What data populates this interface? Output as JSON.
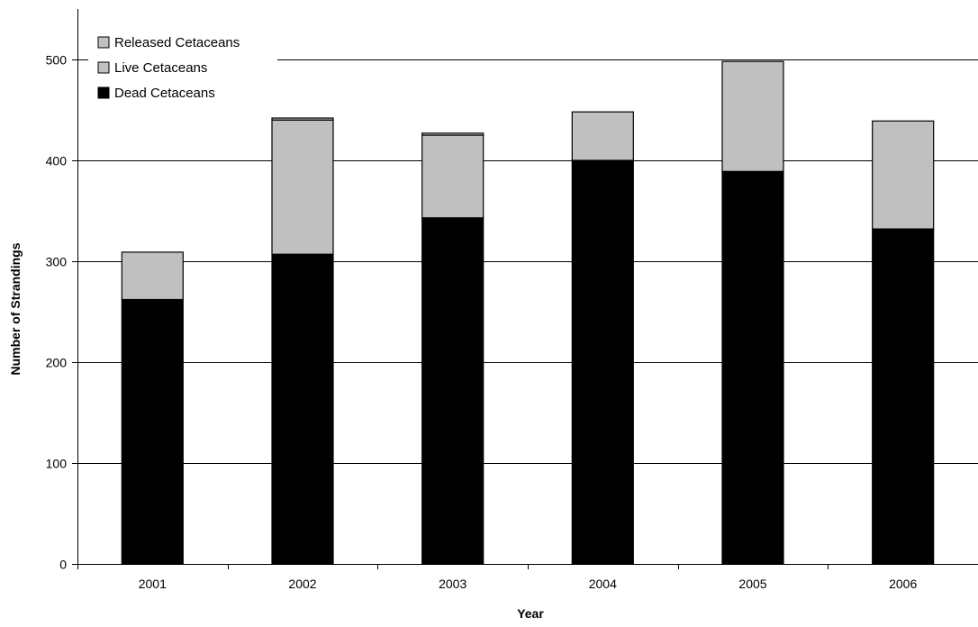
{
  "chart_data": {
    "type": "bar",
    "stacked": true,
    "title": "",
    "xlabel": "Year",
    "ylabel": "Number of Strandings",
    "categories": [
      "2001",
      "2002",
      "2003",
      "2004",
      "2005",
      "2006"
    ],
    "series": [
      {
        "name": "Dead Cetaceans",
        "color": "#000000",
        "values": [
          262,
          307,
          343,
          400,
          389,
          332
        ]
      },
      {
        "name": "Live Cetaceans",
        "color": "#c0c0c0",
        "values": [
          47,
          133,
          82,
          48,
          109,
          107
        ]
      },
      {
        "name": "Released Cetaceans",
        "color": "#c0c0c0",
        "values": [
          0,
          2,
          2,
          0,
          0,
          0
        ]
      }
    ],
    "legend_order": [
      "Released Cetaceans",
      "Live Cetaceans",
      "Dead Cetaceans"
    ],
    "legend_position": "top-left",
    "ylim": [
      0,
      550
    ],
    "yticks": [
      "0",
      "100",
      "200",
      "300",
      "400",
      "500"
    ],
    "grid": "horizontal"
  }
}
